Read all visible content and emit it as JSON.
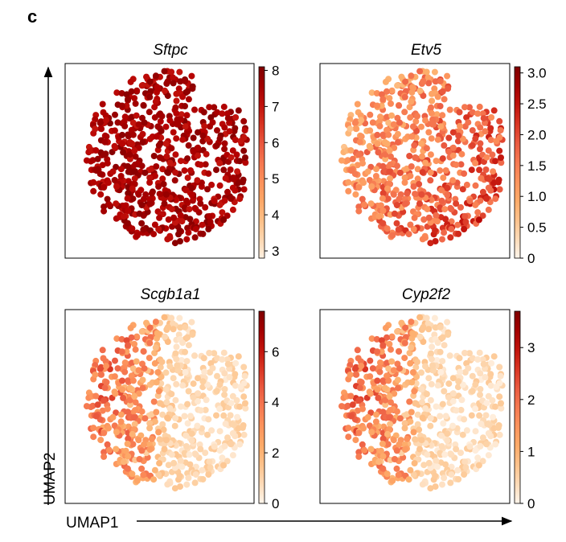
{
  "panel_label": "c",
  "axes": {
    "x_label": "UMAP1",
    "y_label": "UMAP2"
  },
  "colormap": [
    "#fff5eb",
    "#fdd0a2",
    "#fdae6b",
    "#fc8d59",
    "#ef6548",
    "#d7301f",
    "#b30000",
    "#7f0000"
  ],
  "chart_data": [
    {
      "type": "scatter",
      "title": "Sftpc",
      "colorbar_ticks": [
        "3",
        "4",
        "5",
        "6",
        "7",
        "8"
      ],
      "colorbar_range": [
        2.8,
        8.1
      ],
      "pattern": "uniform_high",
      "value_range": [
        7.0,
        8.0
      ]
    },
    {
      "type": "scatter",
      "title": "Etv5",
      "colorbar_ticks": [
        "0",
        "0.5",
        "1.0",
        "1.5",
        "2.0",
        "2.5",
        "3.0"
      ],
      "colorbar_range": [
        0,
        3.1
      ],
      "pattern": "increasing_top_right",
      "value_range": [
        0.3,
        2.8
      ]
    },
    {
      "type": "scatter",
      "title": "Scgb1a1",
      "colorbar_ticks": [
        "0",
        "2",
        "4",
        "6"
      ],
      "colorbar_range": [
        0,
        7.6
      ],
      "pattern": "increasing_bottom_left",
      "value_range": [
        0.3,
        7.0
      ]
    },
    {
      "type": "scatter",
      "title": "Cyp2f2",
      "colorbar_ticks": [
        "0",
        "1",
        "2",
        "3"
      ],
      "colorbar_range": [
        0,
        3.7
      ],
      "pattern": "increasing_bottom_left",
      "value_range": [
        0.1,
        3.5
      ]
    }
  ]
}
